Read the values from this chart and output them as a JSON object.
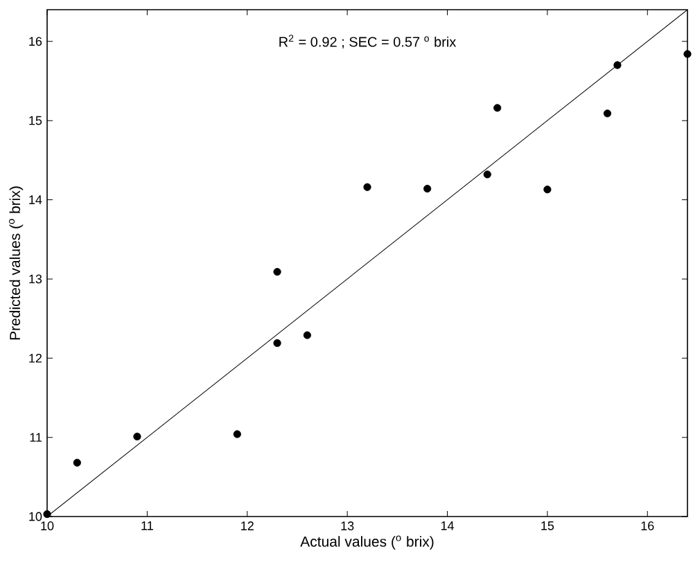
{
  "chart_data": {
    "type": "scatter",
    "xlabel": "Actual values ($^{o}$ brix)",
    "ylabel": "Predicted values ($^{o}$ brix)",
    "annotations": [
      "R$^{2}$ = 0.92 ; SEC = 0.57 $^{o}$ brix"
    ],
    "grid": false,
    "xlim": [
      10,
      16.4
    ],
    "ylim": [
      10,
      16.4
    ],
    "xticks": [
      10,
      11,
      12,
      13,
      14,
      15,
      16
    ],
    "yticks": [
      10,
      11,
      12,
      13,
      14,
      15,
      16
    ],
    "series": [
      {
        "marker": "circle",
        "color": "#000000",
        "x": [
          10.0,
          10.3,
          10.9,
          11.9,
          12.3,
          12.6,
          12.3,
          13.2,
          13.8,
          14.4,
          14.5,
          15.0,
          15.6,
          15.7,
          16.4
        ],
        "values": [
          10.03,
          10.68,
          11.01,
          11.04,
          12.19,
          12.29,
          13.09,
          14.16,
          14.14,
          14.32,
          15.16,
          14.13,
          15.09,
          15.7,
          15.84
        ]
      },
      {
        "type": "line",
        "marker": "none",
        "color": "#000000",
        "x": [
          10,
          16.4
        ],
        "values": [
          10,
          16.4
        ]
      }
    ]
  }
}
